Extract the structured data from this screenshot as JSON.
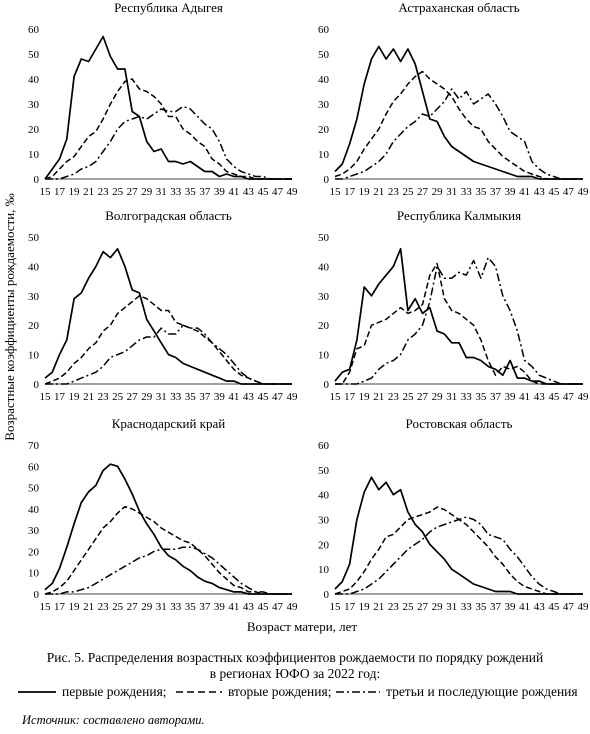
{
  "page": {
    "y_axis_label": "Возрастные коэффициенты рождаемости, ‰",
    "x_axis_label": "Возраст матери, лет",
    "caption_line1": "Рис. 5. Распределения возрастных коэффициентов рождаемости по порядку рождений",
    "caption_line2": "в регионах ЮФО за 2022 год:",
    "source": "Источник: составлено авторами."
  },
  "legend": [
    {
      "label": "первые рождения;",
      "dash": "solid"
    },
    {
      "label": "вторые рождения;",
      "dash": "dashed"
    },
    {
      "label": "третьи и последующие рождения",
      "dash": "dashdot"
    }
  ],
  "chart_data": [
    {
      "type": "line",
      "title": "Республика Адыгея",
      "x": [
        15,
        16,
        17,
        18,
        19,
        20,
        21,
        22,
        23,
        24,
        25,
        26,
        27,
        28,
        29,
        30,
        31,
        32,
        33,
        34,
        35,
        36,
        37,
        38,
        39,
        40,
        41,
        42,
        43,
        44,
        45,
        46,
        47,
        48,
        49
      ],
      "xticks": [
        15,
        17,
        19,
        21,
        23,
        25,
        27,
        29,
        31,
        33,
        35,
        37,
        39,
        41,
        43,
        45,
        47,
        49
      ],
      "ylim": [
        0,
        60
      ],
      "yticks": [
        0,
        10,
        20,
        30,
        40,
        50,
        60
      ],
      "series": [
        {
          "style": "solid",
          "values": [
            0,
            4,
            8,
            16,
            41,
            48,
            47,
            52,
            57,
            49,
            44,
            44,
            27,
            25,
            15,
            11,
            12,
            7,
            7,
            6,
            7,
            5,
            3,
            3,
            1,
            2,
            1,
            1,
            0,
            0,
            0,
            0,
            0,
            0,
            0
          ]
        },
        {
          "style": "dashed",
          "values": [
            0,
            1,
            4,
            7,
            9,
            13,
            17,
            19,
            24,
            30,
            35,
            39,
            40,
            36,
            35,
            33,
            30,
            25,
            25,
            20,
            18,
            15,
            13,
            8,
            6,
            3,
            2,
            1,
            1,
            0,
            0,
            0,
            0,
            0,
            0
          ]
        },
        {
          "style": "dashdot",
          "values": [
            0,
            0,
            0,
            1,
            2,
            4,
            5,
            7,
            11,
            15,
            20,
            23,
            24,
            25,
            24,
            26,
            28,
            27,
            27,
            29,
            28,
            25,
            22,
            20,
            15,
            8,
            5,
            3,
            2,
            1,
            1,
            0,
            0,
            0,
            0
          ]
        }
      ]
    },
    {
      "type": "line",
      "title": "Астраханская область",
      "x": [
        15,
        16,
        17,
        18,
        19,
        20,
        21,
        22,
        23,
        24,
        25,
        26,
        27,
        28,
        29,
        30,
        31,
        32,
        33,
        34,
        35,
        36,
        37,
        38,
        39,
        40,
        41,
        42,
        43,
        44,
        45,
        46,
        47,
        48,
        49
      ],
      "xticks": [
        15,
        17,
        19,
        21,
        23,
        25,
        27,
        29,
        31,
        33,
        35,
        37,
        39,
        41,
        43,
        45,
        47,
        49
      ],
      "ylim": [
        0,
        60
      ],
      "yticks": [
        0,
        10,
        20,
        30,
        40,
        50,
        60
      ],
      "series": [
        {
          "style": "solid",
          "values": [
            3,
            6,
            14,
            24,
            38,
            48,
            53,
            48,
            52,
            47,
            52,
            46,
            35,
            24,
            23,
            17,
            13,
            11,
            9,
            7,
            6,
            5,
            4,
            3,
            2,
            1,
            1,
            1,
            0,
            0,
            0,
            0,
            0,
            0,
            0
          ]
        },
        {
          "style": "dashed",
          "values": [
            1,
            2,
            4,
            7,
            12,
            16,
            20,
            26,
            31,
            34,
            38,
            41,
            43,
            40,
            38,
            36,
            33,
            28,
            24,
            21,
            20,
            15,
            12,
            9,
            7,
            5,
            3,
            2,
            1,
            0,
            0,
            0,
            0,
            0,
            0
          ]
        },
        {
          "style": "dashdot",
          "values": [
            0,
            0,
            1,
            2,
            3,
            5,
            7,
            10,
            15,
            18,
            21,
            23,
            26,
            25,
            28,
            31,
            36,
            32,
            35,
            30,
            32,
            34,
            30,
            25,
            19,
            17,
            15,
            7,
            4,
            2,
            1,
            0,
            0,
            0,
            0
          ]
        }
      ]
    },
    {
      "type": "line",
      "title": "Волгоградская область",
      "x": [
        15,
        16,
        17,
        18,
        19,
        20,
        21,
        22,
        23,
        24,
        25,
        26,
        27,
        28,
        29,
        30,
        31,
        32,
        33,
        34,
        35,
        36,
        37,
        38,
        39,
        40,
        41,
        42,
        43,
        44,
        45,
        46,
        47,
        48,
        49
      ],
      "xticks": [
        15,
        17,
        19,
        21,
        23,
        25,
        27,
        29,
        31,
        33,
        35,
        37,
        39,
        41,
        43,
        45,
        47,
        49
      ],
      "ylim": [
        0,
        50
      ],
      "yticks": [
        0,
        10,
        20,
        30,
        40,
        50
      ],
      "series": [
        {
          "style": "solid",
          "values": [
            2,
            4,
            10,
            15,
            29,
            31,
            36,
            40,
            45,
            43,
            46,
            40,
            32,
            31,
            22,
            18,
            14,
            10,
            9,
            7,
            6,
            5,
            4,
            3,
            2,
            1,
            1,
            0,
            0,
            0,
            0,
            0,
            0,
            0,
            0
          ]
        },
        {
          "style": "dashed",
          "values": [
            0,
            1,
            2,
            4,
            7,
            9,
            12,
            14,
            18,
            20,
            24,
            26,
            28,
            30,
            29,
            27,
            25,
            25,
            21,
            20,
            19,
            18,
            16,
            14,
            11,
            8,
            5,
            3,
            2,
            1,
            0,
            0,
            0,
            0,
            0
          ]
        },
        {
          "style": "dashdot",
          "values": [
            0,
            0,
            0,
            0,
            1,
            2,
            3,
            4,
            6,
            9,
            10,
            11,
            13,
            15,
            16,
            16,
            19,
            17,
            17,
            20,
            19,
            19,
            17,
            14,
            12,
            10,
            7,
            4,
            2,
            1,
            0,
            0,
            0,
            0,
            0
          ]
        }
      ]
    },
    {
      "type": "line",
      "title": "Республика Калмыкия",
      "x": [
        15,
        16,
        17,
        18,
        19,
        20,
        21,
        22,
        23,
        24,
        25,
        26,
        27,
        28,
        29,
        30,
        31,
        32,
        33,
        34,
        35,
        36,
        37,
        38,
        39,
        40,
        41,
        42,
        43,
        44,
        45,
        46,
        47,
        48,
        49
      ],
      "xticks": [
        15,
        17,
        19,
        21,
        23,
        25,
        27,
        29,
        31,
        33,
        35,
        37,
        39,
        41,
        43,
        45,
        47,
        49
      ],
      "ylim": [
        0,
        50
      ],
      "yticks": [
        0,
        10,
        20,
        30,
        40,
        50
      ],
      "series": [
        {
          "style": "solid",
          "values": [
            1,
            4,
            5,
            15,
            33,
            30,
            34,
            37,
            40,
            46,
            25,
            29,
            24,
            26,
            18,
            17,
            14,
            14,
            9,
            9,
            8,
            6,
            5,
            3,
            8,
            2,
            2,
            1,
            1,
            0,
            0,
            0,
            0,
            0,
            0
          ]
        },
        {
          "style": "dashed",
          "values": [
            0,
            0,
            4,
            12,
            13,
            20,
            21,
            22,
            24,
            26,
            24,
            25,
            27,
            37,
            41,
            29,
            25,
            24,
            22,
            20,
            15,
            8,
            3,
            6,
            5,
            6,
            4,
            1,
            0,
            0,
            0,
            0,
            0,
            0,
            0
          ]
        },
        {
          "style": "dashdot",
          "values": [
            0,
            0,
            0,
            0,
            1,
            2,
            5,
            7,
            8,
            10,
            15,
            17,
            20,
            28,
            40,
            36,
            36,
            38,
            37,
            42,
            36,
            43,
            40,
            30,
            25,
            18,
            8,
            6,
            3,
            2,
            1,
            0,
            0,
            0,
            0
          ]
        }
      ]
    },
    {
      "type": "line",
      "title": "Краснодарский край",
      "x": [
        15,
        16,
        17,
        18,
        19,
        20,
        21,
        22,
        23,
        24,
        25,
        26,
        27,
        28,
        29,
        30,
        31,
        32,
        33,
        34,
        35,
        36,
        37,
        38,
        39,
        40,
        41,
        42,
        43,
        44,
        45,
        46,
        47,
        48,
        49
      ],
      "xticks": [
        15,
        17,
        19,
        21,
        23,
        25,
        27,
        29,
        31,
        33,
        35,
        37,
        39,
        41,
        43,
        45,
        47,
        49
      ],
      "ylim": [
        0,
        70
      ],
      "yticks": [
        0,
        10,
        20,
        30,
        40,
        50,
        60,
        70
      ],
      "series": [
        {
          "style": "solid",
          "values": [
            2,
            5,
            12,
            22,
            33,
            43,
            48,
            51,
            58,
            61,
            60,
            54,
            47,
            39,
            33,
            28,
            22,
            18,
            16,
            13,
            11,
            8,
            6,
            5,
            3,
            2,
            1,
            1,
            0,
            0,
            0,
            0,
            0,
            0,
            0
          ]
        },
        {
          "style": "dashed",
          "values": [
            0,
            1,
            3,
            6,
            11,
            16,
            21,
            26,
            31,
            34,
            38,
            41,
            40,
            38,
            36,
            34,
            31,
            29,
            27,
            25,
            24,
            21,
            18,
            14,
            10,
            7,
            4,
            3,
            1,
            1,
            0,
            0,
            0,
            0,
            0
          ]
        },
        {
          "style": "dashdot",
          "values": [
            0,
            0,
            0,
            1,
            1,
            2,
            3,
            5,
            7,
            9,
            11,
            13,
            15,
            17,
            18,
            20,
            21,
            21,
            21,
            22,
            22,
            21,
            19,
            17,
            14,
            11,
            8,
            5,
            3,
            1,
            1,
            0,
            0,
            0,
            0
          ]
        }
      ]
    },
    {
      "type": "line",
      "title": "Ростовская область",
      "x": [
        15,
        16,
        17,
        18,
        19,
        20,
        21,
        22,
        23,
        24,
        25,
        26,
        27,
        28,
        29,
        30,
        31,
        32,
        33,
        34,
        35,
        36,
        37,
        38,
        39,
        40,
        41,
        42,
        43,
        44,
        45,
        46,
        47,
        48,
        49
      ],
      "xticks": [
        15,
        17,
        19,
        21,
        23,
        25,
        27,
        29,
        31,
        33,
        35,
        37,
        39,
        41,
        43,
        45,
        47,
        49
      ],
      "ylim": [
        0,
        60
      ],
      "yticks": [
        0,
        10,
        20,
        30,
        40,
        50,
        60
      ],
      "series": [
        {
          "style": "solid",
          "values": [
            2,
            5,
            12,
            30,
            41,
            47,
            42,
            45,
            40,
            42,
            33,
            28,
            25,
            20,
            17,
            14,
            10,
            8,
            6,
            4,
            3,
            2,
            1,
            1,
            1,
            0,
            0,
            0,
            0,
            0,
            0,
            0,
            0,
            0,
            0
          ]
        },
        {
          "style": "dashed",
          "values": [
            0,
            1,
            2,
            5,
            9,
            14,
            18,
            23,
            24,
            27,
            30,
            31,
            32,
            33,
            35,
            34,
            32,
            30,
            28,
            25,
            22,
            19,
            15,
            12,
            8,
            5,
            3,
            2,
            1,
            0,
            0,
            0,
            0,
            0,
            0
          ]
        },
        {
          "style": "dashdot",
          "values": [
            0,
            0,
            0,
            1,
            2,
            4,
            6,
            9,
            12,
            15,
            18,
            20,
            22,
            25,
            27,
            28,
            29,
            30,
            31,
            30,
            28,
            24,
            23,
            22,
            18,
            15,
            11,
            7,
            4,
            2,
            1,
            0,
            0,
            0,
            0
          ]
        }
      ]
    }
  ]
}
